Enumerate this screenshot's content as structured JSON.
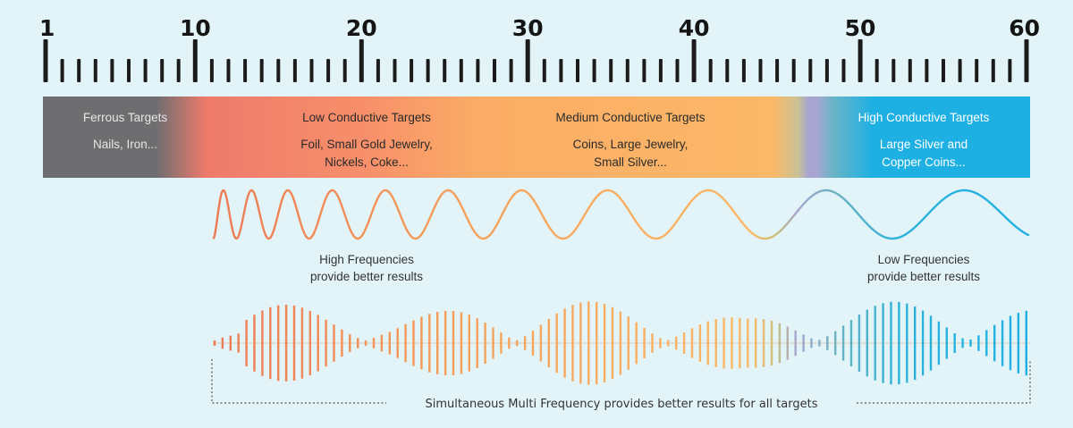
{
  "scale": {
    "min": 1,
    "max": 60,
    "labels": [
      "1",
      "10",
      "20",
      "30",
      "40",
      "50",
      "60"
    ],
    "label_values": [
      1,
      10,
      20,
      30,
      40,
      50,
      60
    ]
  },
  "bands": [
    {
      "id": "ferrous",
      "title": "Ferrous Targets",
      "lines": [
        "Nails, Iron..."
      ],
      "text_color": "#e6e6e6"
    },
    {
      "id": "low",
      "title": "Low Conductive Targets",
      "lines": [
        "Foil, Small Gold Jewelry,",
        "Nickels, Coke..."
      ],
      "text_color": "#2a2a2a"
    },
    {
      "id": "medium",
      "title": "Medium Conductive Targets",
      "lines": [
        "Coins, Large Jewelry,",
        "Small Silver..."
      ],
      "text_color": "#2a2a2a"
    },
    {
      "id": "high",
      "title": "High Conductive Targets",
      "lines": [
        "Large Silver and",
        "Copper Coins..."
      ],
      "text_color": "#ffffff"
    }
  ],
  "captions": {
    "high_freq": [
      "High Frequencies",
      "provide better results"
    ],
    "low_freq": [
      "Low Frequencies",
      "provide better results"
    ],
    "multi": "Simultaneous Multi Frequency provides better results for all targets"
  },
  "colors": {
    "ferrous": "#6e6e70",
    "low": "#ef7b6b",
    "medium": "#fbb868",
    "transition": "#a7a5cf",
    "high": "#1fb0e3",
    "ruler": "#1b1b1b",
    "background": "#e2f4f8"
  }
}
